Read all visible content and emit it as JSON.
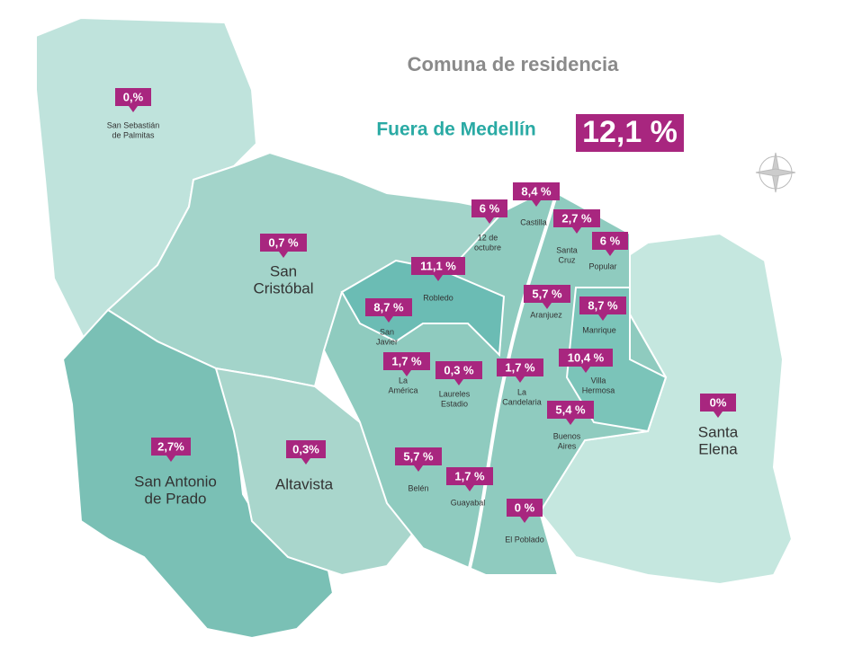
{
  "header": {
    "title": "Comuna de residencia",
    "outside_label": "Fuera de Medellín",
    "outside_value": "12,1 %"
  },
  "regions": [
    {
      "label": "0,%",
      "name": [
        "San Sebastián",
        "de Palmitas"
      ]
    },
    {
      "label": "0,7 %",
      "name": [
        "San",
        "Cristóbal"
      ]
    },
    {
      "label": "2,7%",
      "name": [
        "San Antonio",
        "de Prado"
      ]
    },
    {
      "label": "0,3%",
      "name": [
        "Altavista"
      ]
    },
    {
      "label": "0%",
      "name": [
        "Santa",
        "Elena"
      ]
    },
    {
      "label": "11,1 %",
      "name": [
        "Robledo"
      ]
    },
    {
      "label": "6 %",
      "name": [
        "12 de",
        "octubre"
      ]
    },
    {
      "label": "8,4 %",
      "name": [
        "Castilla"
      ]
    },
    {
      "label": "2,7 %",
      "name": [
        "Santa",
        "Cruz"
      ]
    },
    {
      "label": "6 %",
      "name": [
        "Popular"
      ]
    },
    {
      "label": "5,7 %",
      "name": [
        "Aranjuez"
      ]
    },
    {
      "label": "8,7 %",
      "name": [
        "Manrique"
      ]
    },
    {
      "label": "8,7 %",
      "name": [
        "San",
        "Javier"
      ]
    },
    {
      "label": "1,7 %",
      "name": [
        "La",
        "América"
      ]
    },
    {
      "label": "0,3 %",
      "name": [
        "Laureles",
        "Estadio"
      ]
    },
    {
      "label": "1,7 %",
      "name": [
        "La",
        "Candelaria"
      ]
    },
    {
      "label": "10,4 %",
      "name": [
        "Villa",
        "Hermosa"
      ]
    },
    {
      "label": "5,4 %",
      "name": [
        "Buenos",
        "Aires"
      ]
    },
    {
      "label": "5,7 %",
      "name": [
        "Belén"
      ]
    },
    {
      "label": "1,7 %",
      "name": [
        "Guayabal"
      ]
    },
    {
      "label": "0 %",
      "name": [
        "El Poblado"
      ]
    }
  ]
}
